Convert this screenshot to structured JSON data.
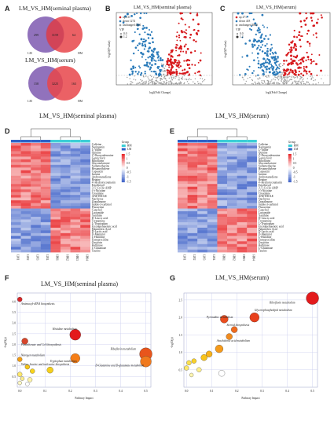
{
  "panels": {
    "A": {
      "letter": "A",
      "venn1": {
        "title": "LM_VS_HM(seminal plasma)",
        "left_only": "299",
        "overlap": "3159",
        "right_only": "64",
        "left_label": "LM",
        "right_label": "HM"
      },
      "venn2": {
        "title": "LM_VS_HM(serum)",
        "left_only": "158",
        "overlap": "3225",
        "right_only": "163",
        "left_label": "LM",
        "right_label": "HM"
      }
    },
    "B": {
      "letter": "B",
      "title": "LM_VS_HM(seminal plasma)",
      "ylabel": "-log10(P value)",
      "xlabel": "log2(Fold Change)",
      "legend": [
        "up 211",
        "down 1274",
        "unchanged 4061"
      ],
      "vip_title": "VIP",
      "vip_levels": [
        "0.0",
        "1.2"
      ]
    },
    "C": {
      "letter": "C",
      "title": "LM_VS_HM(serum)",
      "ylabel": "-log10(P value)",
      "xlabel": "log2(Fold Change)",
      "legend": [
        "up 271",
        "down 418",
        "unchanged 4860"
      ],
      "vip_title": "VIP",
      "vip_levels": [
        "0.0",
        "1.2"
      ]
    },
    "D": {
      "letter": "D",
      "title": "LM_VS_HM(seminal plasma)",
      "samples": [
        "LM1",
        "LM2",
        "LM3",
        "LM4",
        "HM1",
        "HM2",
        "HM3",
        "HM4"
      ],
      "group_title": "Group",
      "group_items": [
        "HM",
        "LM"
      ],
      "scale": [
        "1.5",
        "1",
        "0.5",
        "0",
        "-0.5",
        "-1",
        "-1.5"
      ],
      "rows": [
        "Caffeine",
        "Naringenin",
        "L-Valine",
        "Quinine",
        "2'-Deoxyadenosine",
        "Ganciclovir",
        "Riboflavin",
        "Gluconolactone",
        "Sulfamethazine",
        "Hexamethylene",
        "Capsaicin",
        "Inosine",
        "Androstanedione",
        "Betaine",
        "4'-Hydroxycoumarin",
        "Eriodictyol",
        "3',5'-Cyclic AMP",
        "(-)-Nicotine",
        "Creatinine",
        "ANETHOLE",
        "Stachyose",
        "Zearalenone",
        "Indole-3-carbinol",
        "Fluoxetine",
        "Catechol",
        "Lactamide",
        "Xanthine",
        "D-Leucic acid",
        "Tryptamine",
        "L-Tryptophan",
        "Eicosapentaenoic acid",
        "Palmitoleic Acid",
        "D-Lactic acid",
        "D-Mannitol",
        "L-Histidine",
        "Entreprocidine",
        "Oxytocin",
        "Raffinose",
        "L-Glutamate",
        "Taurine"
      ]
    },
    "E": {
      "letter": "E",
      "title": "LM_VS_HM(serum)",
      "samples": [
        "LM1",
        "LM2",
        "LM3",
        "LM4",
        "HM1",
        "HM2",
        "HM3",
        "HM4"
      ],
      "group_title": "Group",
      "group_items": [
        "HM",
        "LM"
      ],
      "scale": [
        "1.5",
        "1",
        "0.5",
        "0",
        "-0.5",
        "-1",
        "-1.5"
      ],
      "rows": [
        "Caffeine",
        "Naringenin",
        "L-Valine",
        "Quinine",
        "2'-Deoxyadenosine",
        "Ganciclovir",
        "Riboflavin",
        "Gluconolactone",
        "Sulfamethazine",
        "Hexamethylene",
        "Capsaicin",
        "Inosine",
        "Androstanedione",
        "Betaine",
        "4'-Hydroxycoumarin",
        "Eriodictyol",
        "3',5'-Cyclic AMP",
        "(-)-Nicotine",
        "Creatinine",
        "ANETHOLE",
        "Stachyose",
        "Zearalenone",
        "Indole-3-carbinol",
        "Fluoxetine",
        "Catechol",
        "Lactamide",
        "Xanthine",
        "D-Leucic acid",
        "Tryptamine",
        "L-Tryptophan",
        "Eicosapentaenoic acid",
        "Palmitoleic Acid",
        "D-Lactic acid",
        "D-Mannitol",
        "L-Histidine",
        "Entreprocidine",
        "Oxytocin",
        "Raffinose",
        "L-Glutamate",
        "Taurine"
      ]
    },
    "F": {
      "letter": "F",
      "title": "LM_VS_HM(seminal plasma)",
      "ylabel": "-log10(p)",
      "xlabel": "Pathway Impact",
      "xticks": [
        "0.0",
        "0.1",
        "0.2",
        "0.3",
        "0.4",
        "0.5"
      ],
      "yticks": [
        "0.5",
        "1.0",
        "1.5",
        "2.0",
        "2.5",
        "3.0",
        "3.5",
        "4.0"
      ],
      "labels": [
        "Aminoacyl-tRNA biosynthesis",
        "Histidine metabolism",
        "Pantothenate and CoA biosynthesis",
        "Riboflavin metabolism",
        "Nitrogen metabolism",
        "Tryptophan metabolism",
        "Valine, leucine and isoleucine biosynthesis",
        "D-Glutamine and D-glutamate metabolism"
      ]
    },
    "G": {
      "letter": "G",
      "title": "LM_VS_HM(serum)",
      "ylabel": "-log10(p)",
      "xlabel": "Pathway Impact",
      "xticks": [
        "0.0",
        "0.1",
        "0.2",
        "0.3",
        "0.4",
        "0.5"
      ],
      "yticks": [
        "0.5",
        "1.0",
        "1.5",
        "2.0",
        "2.5"
      ],
      "labels": [
        "Riboflavin metabolism",
        "Glycerophospholipid metabolism",
        "Pyrimidine metabolism",
        "Phenylalanine metabolism",
        "Steroid biosynthesis",
        "Arachidonic acid metabolism"
      ]
    }
  },
  "colors": {
    "up": "#d7191c",
    "down": "#2b7bba",
    "unchanged": "#9a9a9a",
    "heat_high": "#e8282b",
    "heat_low": "#3f62c8",
    "group_hm": "#3ccfd6",
    "group_lm": "#2d63c8"
  },
  "chart_data": [
    {
      "type": "scatter",
      "panel": "F",
      "title": "LM_VS_HM(seminal plasma)",
      "xlabel": "Pathway Impact",
      "ylabel": "-log10(p)",
      "xlim": [
        -0.01,
        0.52
      ],
      "ylim": [
        0,
        4.4
      ],
      "points": [
        {
          "name": "Aminoacyl-tRNA biosynthesis",
          "x": 0.0,
          "y": 4.1,
          "r": 3,
          "color": "#d62728"
        },
        {
          "name": "Histidine metabolism",
          "x": 0.22,
          "y": 2.45,
          "r": 7,
          "color": "#e31a1c"
        },
        {
          "name": "Pantothenate and CoA biosynthesis",
          "x": 0.02,
          "y": 2.15,
          "r": 4,
          "color": "#d6452a"
        },
        {
          "name": "Riboflavin metabolism",
          "x": 0.5,
          "y": 1.55,
          "r": 8,
          "color": "#e8551c"
        },
        {
          "name": "Riboflavin metabolism",
          "x": 0.5,
          "y": 1.2,
          "r": 7,
          "color": "#f07a1e"
        },
        {
          "name": "Tryptophan metabolism",
          "x": 0.22,
          "y": 1.35,
          "r": 6,
          "color": "#f57e18"
        },
        {
          "name": "Nitrogen metabolism",
          "x": 0.0,
          "y": 1.3,
          "r": 3,
          "color": "#f39c12"
        },
        {
          "name": "",
          "x": 0.03,
          "y": 0.95,
          "r": 3,
          "color": "#f5c518"
        },
        {
          "name": "",
          "x": 0.05,
          "y": 0.75,
          "r": 3,
          "color": "#f7d21c"
        },
        {
          "name": "",
          "x": 0.12,
          "y": 0.8,
          "r": 4,
          "color": "#f5cf1c"
        },
        {
          "name": "",
          "x": 0.0,
          "y": 0.6,
          "r": 3,
          "color": "#fde76a"
        },
        {
          "name": "",
          "x": 0.01,
          "y": 0.4,
          "r": 2.5,
          "color": "#fbec8e"
        },
        {
          "name": "",
          "x": 0.04,
          "y": 0.35,
          "r": 3,
          "color": "#fdf3aa"
        },
        {
          "name": "",
          "x": 0.0,
          "y": 0.2,
          "r": 2.5,
          "color": "#fff7c4"
        },
        {
          "name": "",
          "x": 0.03,
          "y": 0.15,
          "r": 2.5,
          "color": "#ffffff"
        }
      ]
    },
    {
      "type": "scatter",
      "panel": "G",
      "title": "LM_VS_HM(serum)",
      "xlabel": "Pathway Impact",
      "ylabel": "-log10(p)",
      "xlim": [
        -0.01,
        0.52
      ],
      "ylim": [
        0,
        2.7
      ],
      "points": [
        {
          "name": "Riboflavin metabolism",
          "x": 0.5,
          "y": 2.55,
          "r": 8,
          "color": "#e31a1c"
        },
        {
          "name": "Glycerophospholipid metabolism",
          "x": 0.27,
          "y": 2.0,
          "r": 6,
          "color": "#e8401c"
        },
        {
          "name": "Pyrimidine metabolism",
          "x": 0.15,
          "y": 1.95,
          "r": 5,
          "color": "#ea4d1e"
        },
        {
          "name": "Steroid biosynthesis",
          "x": 0.19,
          "y": 1.65,
          "r": 4,
          "color": "#ef6a1e"
        },
        {
          "name": "Phenylalanine metabolism",
          "x": 0.17,
          "y": 1.45,
          "r": 4,
          "color": "#f08a1e"
        },
        {
          "name": "Arachidonic acid metabolism",
          "x": 0.13,
          "y": 1.1,
          "r": 5,
          "color": "#f59a1a"
        },
        {
          "name": "",
          "x": 0.09,
          "y": 0.95,
          "r": 4,
          "color": "#f7b21c"
        },
        {
          "name": "",
          "x": 0.07,
          "y": 0.85,
          "r": 4,
          "color": "#f8c31c"
        },
        {
          "name": "",
          "x": 0.03,
          "y": 0.75,
          "r": 3,
          "color": "#f9d12a"
        },
        {
          "name": "",
          "x": 0.01,
          "y": 0.7,
          "r": 3,
          "color": "#fbe04c"
        },
        {
          "name": "",
          "x": 0.0,
          "y": 0.55,
          "r": 3,
          "color": "#fde86a"
        },
        {
          "name": "",
          "x": 0.05,
          "y": 0.5,
          "r": 3,
          "color": "#fdef8c"
        },
        {
          "name": "",
          "x": 0.02,
          "y": 0.35,
          "r": 2.5,
          "color": "#fff5b0"
        },
        {
          "name": "",
          "x": 0.14,
          "y": 0.4,
          "r": 4,
          "color": "#ffffff"
        }
      ]
    }
  ]
}
